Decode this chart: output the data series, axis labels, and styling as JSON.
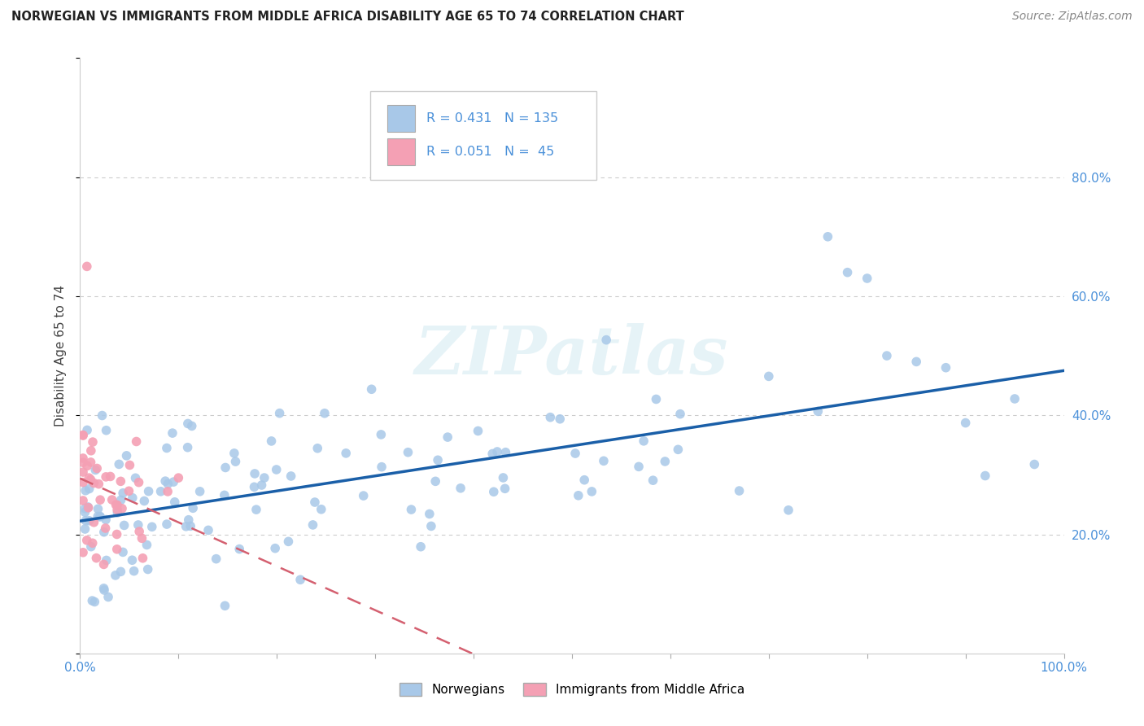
{
  "title": "NORWEGIAN VS IMMIGRANTS FROM MIDDLE AFRICA DISABILITY AGE 65 TO 74 CORRELATION CHART",
  "source": "Source: ZipAtlas.com",
  "ylabel": "Disability Age 65 to 74",
  "xlim": [
    0.0,
    1.0
  ],
  "ylim": [
    0.0,
    1.0
  ],
  "ytick_positions": [
    0.2,
    0.4,
    0.6,
    0.8
  ],
  "ytick_labels": [
    "20.0%",
    "40.0%",
    "60.0%",
    "80.0%"
  ],
  "background_color": "#ffffff",
  "grid_color": "#cccccc",
  "norwegian_color": "#a8c8e8",
  "immigrant_color": "#f4a0b4",
  "norwegian_line_color": "#1a5fa8",
  "immigrant_line_color": "#d46070",
  "R_norwegian": 0.431,
  "N_norwegian": 135,
  "R_immigrant": 0.051,
  "N_immigrant": 45,
  "legend_label_norwegian": "Norwegians",
  "legend_label_immigrant": "Immigrants from Middle Africa",
  "tick_color": "#4a90d9",
  "title_color": "#222222",
  "source_color": "#888888",
  "ylabel_color": "#444444",
  "watermark_text": "ZIPatlas",
  "watermark_color": "#add8e6",
  "watermark_alpha": 0.3
}
